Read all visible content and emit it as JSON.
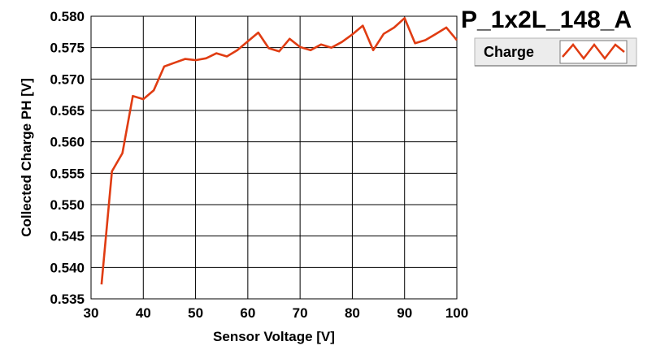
{
  "chart_data": {
    "type": "line",
    "title": "P_1x2L_148_A",
    "xlabel": "Sensor Voltage [V]",
    "ylabel": "Collected Charge PH [V]",
    "xlim": [
      30,
      100
    ],
    "ylim": [
      0.535,
      0.58
    ],
    "xticks": [
      "30",
      "40",
      "50",
      "60",
      "70",
      "80",
      "90",
      "100"
    ],
    "yticks": [
      "0.535",
      "0.540",
      "0.545",
      "0.550",
      "0.555",
      "0.560",
      "0.565",
      "0.570",
      "0.575",
      "0.580"
    ],
    "grid": true,
    "legend_position": "top-right",
    "series": [
      {
        "name": "Charge",
        "color": "#e03c12",
        "x": [
          32,
          34,
          36,
          38,
          40,
          42,
          44,
          46,
          48,
          50,
          52,
          54,
          56,
          58,
          60,
          62,
          64,
          66,
          68,
          70,
          72,
          74,
          76,
          78,
          80,
          82,
          84,
          86,
          88,
          90,
          92,
          94,
          96,
          98,
          100
        ],
        "y": [
          0.5373,
          0.5553,
          0.5582,
          0.5673,
          0.5668,
          0.5682,
          0.572,
          0.5726,
          0.5732,
          0.573,
          0.5733,
          0.5741,
          0.5736,
          0.5746,
          0.576,
          0.5774,
          0.5749,
          0.5744,
          0.5764,
          0.5751,
          0.5746,
          0.5755,
          0.575,
          0.5759,
          0.5771,
          0.5785,
          0.5746,
          0.5772,
          0.5782,
          0.5797,
          0.5757,
          0.5762,
          0.5772,
          0.5782,
          0.5762
        ]
      }
    ]
  }
}
